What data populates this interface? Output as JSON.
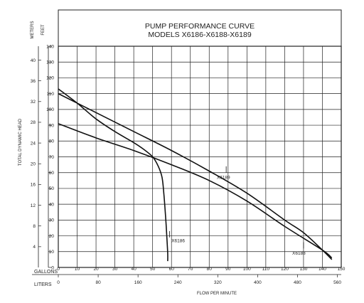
{
  "chart_data": {
    "type": "line",
    "title": "PUMP PERFORMANCE CURVE",
    "subtitle": "MODELS X6186-X6188-X6189",
    "xlabel": "FLOW PER MINUTE",
    "ylabel": "TOTAL DYNAMIC HEAD",
    "y_left_unit": "METERS",
    "y_right_unit": "FEET",
    "x_row_gallons_label": "GALLONS",
    "x_row_liters_label": "LITERS",
    "x_gallons_ticks": [
      "0",
      "10",
      "20",
      "30",
      "40",
      "50",
      "60",
      "70",
      "80",
      "90",
      "100",
      "110",
      "120",
      "130",
      "140",
      "150"
    ],
    "x_liters_ticks": [
      "0",
      "80",
      "160",
      "240",
      "320",
      "400",
      "480",
      "560"
    ],
    "y_feet_ticks": [
      "0",
      "10",
      "20",
      "30",
      "40",
      "50",
      "60",
      "70",
      "80",
      "90",
      "100",
      "110",
      "120",
      "130",
      "140"
    ],
    "y_meters_ticks": [
      "4",
      "8",
      "12",
      "16",
      "20",
      "24",
      "28",
      "32",
      "36",
      "40"
    ],
    "xlim": [
      0,
      150
    ],
    "ylim": [
      0,
      140
    ],
    "grid": true,
    "series": [
      {
        "name": "X6186",
        "x": [
          0,
          10,
          20,
          30,
          40,
          45,
          50,
          53,
          55,
          56,
          57,
          57.5,
          58,
          58
        ],
        "y": [
          113,
          104,
          94,
          86,
          79,
          75,
          70,
          64,
          57,
          46,
          30,
          20,
          9,
          4
        ]
      },
      {
        "name": "X6188",
        "x": [
          0,
          20,
          40,
          60,
          80,
          100,
          120,
          130,
          140,
          145
        ],
        "y": [
          110,
          98,
          86,
          74,
          61,
          47,
          30,
          22,
          11,
          5
        ]
      },
      {
        "name": "X6189",
        "x": [
          0,
          20,
          40,
          60,
          80,
          100,
          120,
          140,
          145
        ],
        "y": [
          91,
          82,
          74,
          65,
          55,
          42,
          26,
          11,
          6
        ]
      }
    ],
    "annotations": [
      {
        "text": "X6189",
        "x": 84,
        "y": 56
      },
      {
        "text": "X6186",
        "x": 60,
        "y": 16
      },
      {
        "text": "X6188",
        "x": 124,
        "y": 8
      }
    ]
  }
}
